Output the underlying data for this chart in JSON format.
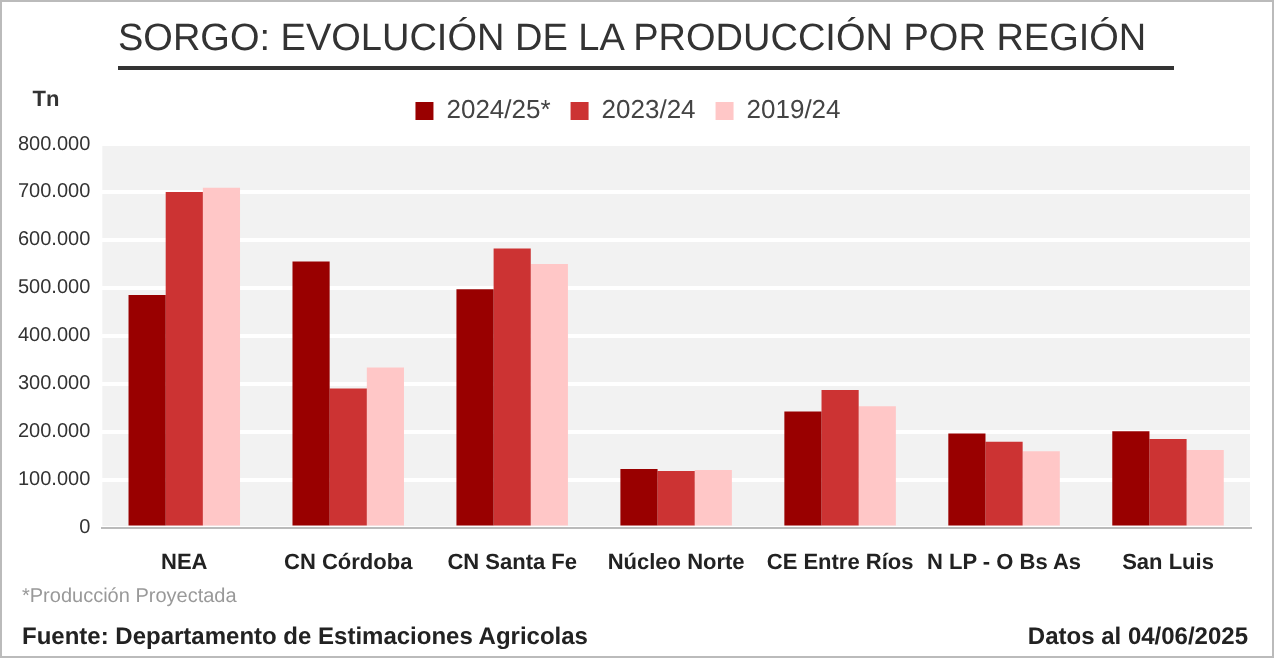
{
  "chart_data": {
    "type": "bar",
    "title": "SORGO: EVOLUCIÓN DE LA PRODUCCIÓN POR REGIÓN",
    "ylabel": "Tn",
    "categories": [
      "NEA",
      "CN Córdoba",
      "CN Santa Fe",
      "Núcleo Norte",
      "CE Entre Ríos",
      "N LP - O Bs As",
      "San Luis"
    ],
    "series": [
      {
        "name": "2024/25*",
        "color": "#990000",
        "values": [
          485000,
          555000,
          497000,
          122000,
          242000,
          196000,
          201000
        ]
      },
      {
        "name": "2023/24",
        "color": "#cc3333",
        "values": [
          700000,
          290000,
          582000,
          118000,
          287000,
          179000,
          185000
        ]
      },
      {
        "name": "2019/24",
        "color": "#ffc7c7",
        "values": [
          709000,
          334000,
          550000,
          120000,
          253000,
          159000,
          162000
        ]
      }
    ],
    "ylim": [
      0,
      800000
    ],
    "yticks": [
      {
        "value": 0,
        "label": "0"
      },
      {
        "value": 100000,
        "label": "100.000"
      },
      {
        "value": 200000,
        "label": "200.000"
      },
      {
        "value": 300000,
        "label": "300.000"
      },
      {
        "value": 400000,
        "label": "400.000"
      },
      {
        "value": 500000,
        "label": "500.000"
      },
      {
        "value": 600000,
        "label": "600.000"
      },
      {
        "value": 700000,
        "label": "700.000"
      },
      {
        "value": 800000,
        "label": "800.000"
      }
    ],
    "grid": "y",
    "legend": "top",
    "annotations": [
      "*Producción Proyectada",
      "Fuente: Departamento de Estimaciones Agricolas",
      "Datos al 04/06/2025"
    ]
  }
}
